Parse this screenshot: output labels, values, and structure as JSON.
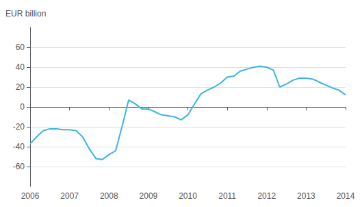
{
  "chart_data": {
    "type": "line",
    "ylabel": "EUR billion",
    "x": [
      2006.0,
      2006.17,
      2006.33,
      2006.5,
      2006.67,
      2006.83,
      2007.0,
      2007.17,
      2007.33,
      2007.5,
      2007.67,
      2007.83,
      2008.0,
      2008.17,
      2008.33,
      2008.5,
      2008.67,
      2008.83,
      2009.0,
      2009.17,
      2009.33,
      2009.5,
      2009.67,
      2009.83,
      2010.0,
      2010.17,
      2010.33,
      2010.5,
      2010.67,
      2010.83,
      2011.0,
      2011.17,
      2011.33,
      2011.5,
      2011.67,
      2011.83,
      2012.0,
      2012.17,
      2012.33,
      2012.5,
      2012.67,
      2012.83,
      2013.0,
      2013.17,
      2013.33,
      2013.5,
      2013.67,
      2013.83,
      2014.0
    ],
    "values": [
      -37,
      -30,
      -24,
      -22,
      -22,
      -23,
      -23,
      -24,
      -30,
      -42,
      -52,
      -53,
      -48,
      -44,
      -20,
      7,
      3,
      -2,
      -2,
      -5,
      -8,
      -9,
      -10,
      -13,
      -8,
      3,
      13,
      17,
      20,
      24,
      30,
      31,
      36,
      38,
      40,
      41,
      40,
      37,
      20,
      23,
      27,
      29,
      29,
      28,
      25,
      22,
      19,
      17,
      12
    ],
    "color": "#3ab5e0",
    "xlim": [
      2006.0,
      2014.0
    ],
    "xticks": [
      2006,
      2007,
      2008,
      2009,
      2010,
      2011,
      2012,
      2013,
      2014
    ],
    "ylim": [
      -80,
      80
    ],
    "yticks": [
      -60,
      -40,
      -20,
      0,
      20,
      40,
      60
    ],
    "grid": "y"
  }
}
